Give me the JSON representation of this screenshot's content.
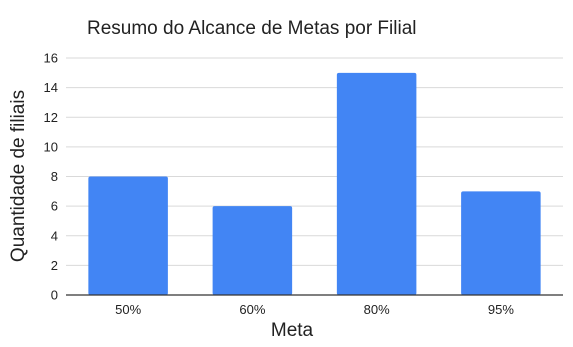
{
  "chart_data": {
    "type": "bar",
    "title": "Resumo do Alcance de Metas por Filial",
    "xlabel": "Meta",
    "ylabel": "Quantidade de filiais",
    "categories": [
      "50%",
      "60%",
      "80%",
      "95%"
    ],
    "values": [
      8,
      6,
      15,
      7
    ],
    "ylim": [
      0,
      16
    ],
    "yticks": [
      0,
      2,
      4,
      6,
      8,
      10,
      12,
      14,
      16
    ],
    "grid": true,
    "legend": "none",
    "colors": {
      "bar": "#4285f4",
      "grid": "#d9d9d9",
      "axis": "#333333",
      "text": "#222222"
    }
  }
}
